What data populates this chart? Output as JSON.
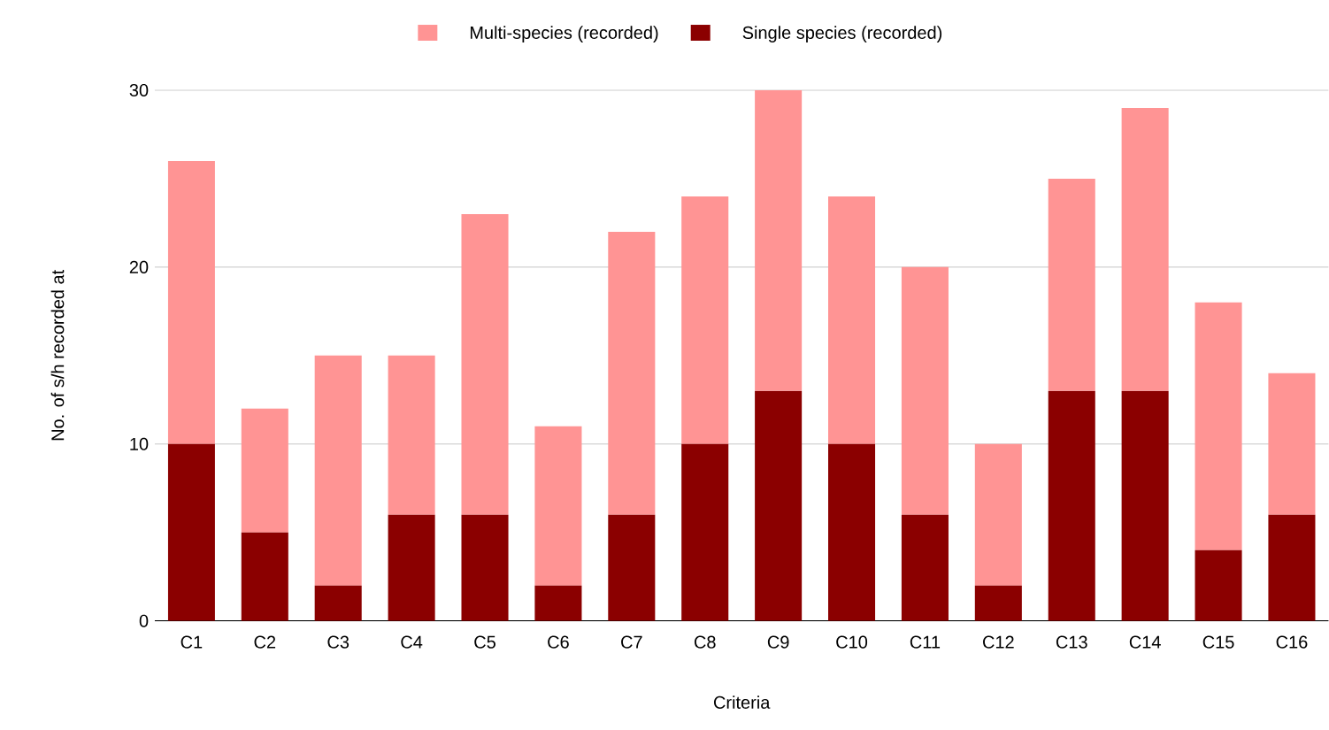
{
  "chart_data": {
    "type": "bar",
    "stacked": true,
    "xlabel": "Criteria",
    "ylabel": "No. of s/h recorded at",
    "categories": [
      "C1",
      "C2",
      "C3",
      "C4",
      "C5",
      "C6",
      "C7",
      "C8",
      "C9",
      "C10",
      "C11",
      "C12",
      "C13",
      "C14",
      "C15",
      "C16"
    ],
    "series": [
      {
        "name": "Single species (recorded)",
        "color": "#8b0000",
        "values": [
          10,
          5,
          2,
          6,
          6,
          2,
          6,
          10,
          13,
          10,
          6,
          2,
          13,
          13,
          4,
          6
        ]
      },
      {
        "name": "Multi-species (recorded)",
        "color": "#ff9494",
        "values": [
          16,
          7,
          13,
          9,
          17,
          9,
          16,
          14,
          17,
          14,
          14,
          8,
          12,
          16,
          14,
          8
        ]
      }
    ],
    "ylim": [
      0,
      30
    ],
    "yticks": [
      0,
      10,
      20,
      30
    ],
    "grid": "y",
    "legend": "top"
  }
}
